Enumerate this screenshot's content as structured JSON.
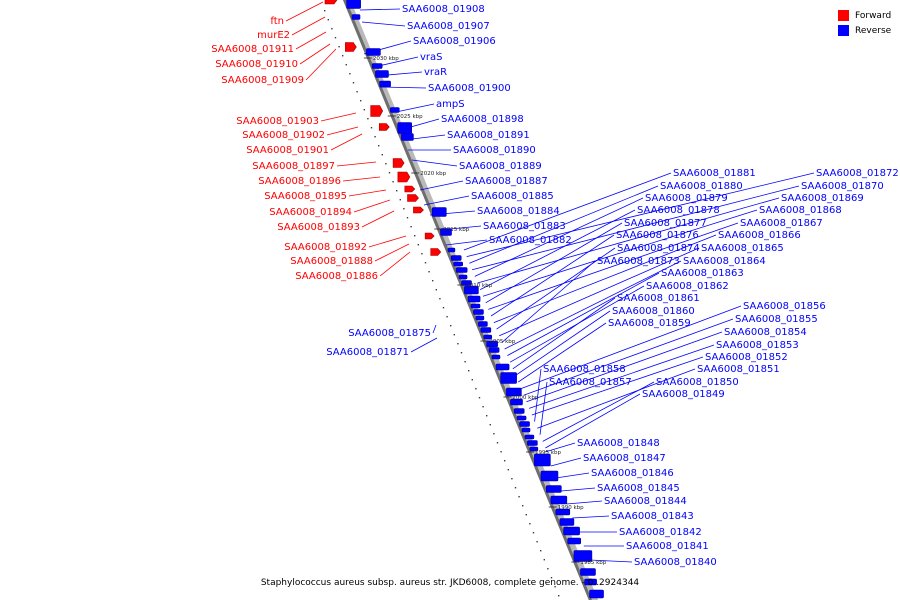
{
  "legend": {
    "forward_label": "Forward",
    "reverse_label": "Reverse",
    "forward_color": "#ff0000",
    "reverse_color": "#0000ff"
  },
  "footer": {
    "title": "Staphylococcus aureus subsp. aureus str. JKD6008, complete genome. - 0..2924344"
  },
  "scale_ticks": [
    "2030 kbp",
    "2025 kbp",
    "2020 kbp",
    "2015 kbp",
    "2010 kbp",
    "2005 kbp",
    "2000 kbp",
    "1995 kbp",
    "1990 kbp",
    "1985 kbp"
  ],
  "forward_genes": [
    "ftn",
    "murE2",
    "SAA6008_01911",
    "SAA6008_01910",
    "SAA6008_01909",
    "SAA6008_01903",
    "SAA6008_01902",
    "SAA6008_01901",
    "SAA6008_01897",
    "SAA6008_01896",
    "SAA6008_01895",
    "SAA6008_01894",
    "SAA6008_01893",
    "SAA6008_01892",
    "SAA6008_01888",
    "SAA6008_01886"
  ],
  "reverse_genes_near": [
    "SAA6008_01908",
    "SAA6008_01907",
    "SAA6008_01906",
    "vraS",
    "vraR",
    "SAA6008_01900",
    "ampS",
    "SAA6008_01898",
    "SAA6008_01891",
    "SAA6008_01890",
    "SAA6008_01889",
    "SAA6008_01887",
    "SAA6008_01885",
    "SAA6008_01884",
    "SAA6008_01883",
    "SAA6008_01882"
  ],
  "reverse_genes_left": [
    "SAA6008_01875",
    "SAA6008_01871"
  ],
  "reverse_genes_far": [
    "SAA6008_01881",
    "SAA6008_01872",
    "SAA6008_01880",
    "SAA6008_01870",
    "SAA6008_01879",
    "SAA6008_01869",
    "SAA6008_01878",
    "SAA6008_01868",
    "SAA6008_01877",
    "SAA6008_01867",
    "SAA6008_01876",
    "SAA6008_01866",
    "SAA6008_01874",
    "SAA6008_01865",
    "SAA6008_01873",
    "SAA6008_01864",
    "SAA6008_01863",
    "SAA6008_01862",
    "SAA6008_01861",
    "SAA6008_01860",
    "SAA6008_01859",
    "SAA6008_01856",
    "SAA6008_01855",
    "SAA6008_01854",
    "SAA6008_01853",
    "SAA6008_01852",
    "SAA6008_01858",
    "SAA6008_01851",
    "SAA6008_01857",
    "SAA6008_01850",
    "SAA6008_01849"
  ],
  "reverse_genes_lower": [
    "SAA6008_01848",
    "SAA6008_01847",
    "SAA6008_01846",
    "SAA6008_01845",
    "SAA6008_01844",
    "SAA6008_01843",
    "SAA6008_01842",
    "SAA6008_01841",
    "SAA6008_01840"
  ]
}
